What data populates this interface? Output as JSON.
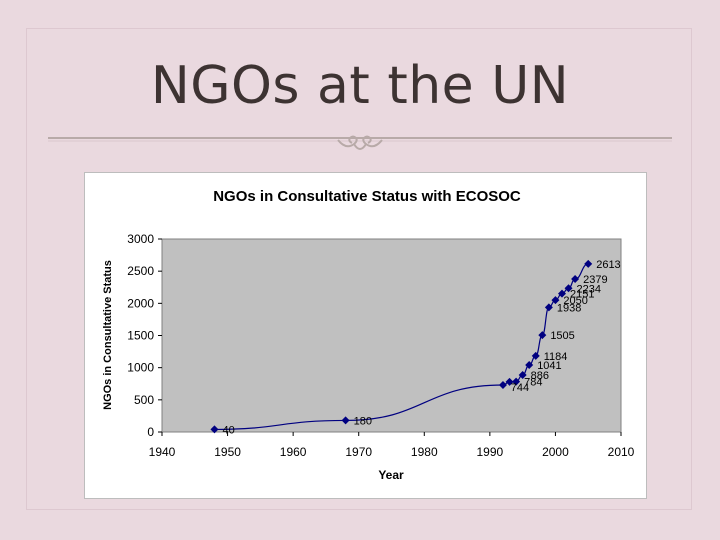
{
  "slide": {
    "title": "NGOs at the UN"
  },
  "colors": {
    "background": "#ead9df",
    "plot_area": "#c0c0c0",
    "series": "#000080",
    "title_text": "#3d3332"
  },
  "chart_data": {
    "type": "line",
    "title": "NGOs in Consultative Status with ECOSOC",
    "xlabel": "Year",
    "ylabel": "NGOs in Consultative Status",
    "xlim": [
      1940,
      2010
    ],
    "ylim": [
      0,
      3000
    ],
    "xticks": [
      "1940",
      "1950",
      "1960",
      "1970",
      "1980",
      "1990",
      "2000",
      "2010"
    ],
    "yticks": [
      "0",
      "500",
      "1000",
      "1500",
      "2000",
      "2500",
      "3000"
    ],
    "grid": false,
    "legend": "none",
    "series": [
      {
        "points": [
          {
            "x": 1948,
            "y": 40,
            "label": "40"
          },
          {
            "x": 1968,
            "y": 180,
            "label": "180"
          },
          {
            "x": 1992,
            "y": 730,
            "label": ""
          },
          {
            "x": 1993,
            "y": 780,
            "label": ""
          },
          {
            "x": 1994,
            "y": 784,
            "label": "784"
          },
          {
            "x": 1995,
            "y": 886,
            "label": "886"
          },
          {
            "x": 1996,
            "y": 1041,
            "label": "1041"
          },
          {
            "x": 1997,
            "y": 1184,
            "label": "1184"
          },
          {
            "x": 1998,
            "y": 1505,
            "label": "1505"
          },
          {
            "x": 1999,
            "y": 1938,
            "label": "1938"
          },
          {
            "x": 2000,
            "y": 2050,
            "label": "2050"
          },
          {
            "x": 2001,
            "y": 2151,
            "label": "2151"
          },
          {
            "x": 2002,
            "y": 2234,
            "label": "2234"
          },
          {
            "x": 2003,
            "y": 2379,
            "label": "2379"
          },
          {
            "x": 2005,
            "y": 2613,
            "label": "2613"
          }
        ],
        "extra_labels": [
          "744"
        ]
      }
    ]
  }
}
